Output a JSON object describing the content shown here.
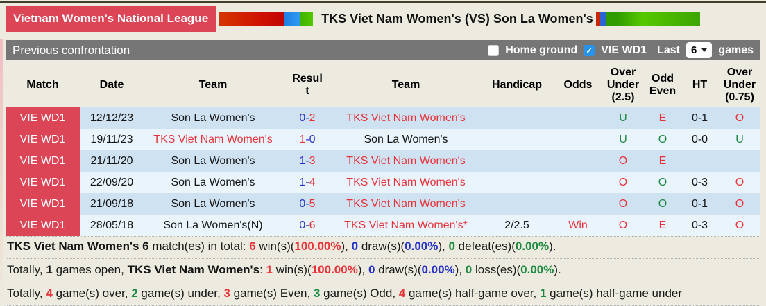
{
  "header": {
    "league_badge": "Vietnam Women's National League",
    "title_pre": "TKS Viet Nam Women's (",
    "title_vs": "VS",
    "title_post": ") Son La Women's"
  },
  "toolbar": {
    "section_title": "Previous confrontation",
    "home_ground_label": "Home ground",
    "home_ground_checked": false,
    "league_filter_label": "VIE WD1",
    "league_filter_checked": true,
    "last_label": "Last",
    "games_count": "6",
    "games_label": "games"
  },
  "table": {
    "headers": [
      "Match",
      "Date",
      "Team",
      "Result",
      "Team",
      "Handicap",
      "Odds",
      "Over Under (2.5)",
      "Odd Even",
      "HT",
      "Over Under (0.75)"
    ],
    "rows": [
      {
        "match": "VIE WD1",
        "date": "12/12/23",
        "team1": {
          "text": "Son La Women's",
          "color": "black"
        },
        "result": {
          "home": "0",
          "home_color": "blue",
          "away": "2",
          "away_color": "red"
        },
        "team2": {
          "text": "TKS Viet Nam Women's",
          "color": "red"
        },
        "handicap": "",
        "odds": {
          "text": "",
          "color": "red"
        },
        "ou25": {
          "text": "U",
          "color": "green"
        },
        "oddeven": {
          "text": "E",
          "color": "red"
        },
        "ht": "0-1",
        "ou075": {
          "text": "O",
          "color": "red"
        }
      },
      {
        "match": "VIE WD1",
        "date": "19/11/23",
        "team1": {
          "text": "TKS Viet Nam Women's",
          "color": "red"
        },
        "result": {
          "home": "1",
          "home_color": "red",
          "away": "0",
          "away_color": "blue"
        },
        "team2": {
          "text": "Son La Women's",
          "color": "black"
        },
        "handicap": "",
        "odds": {
          "text": "",
          "color": "red"
        },
        "ou25": {
          "text": "U",
          "color": "green"
        },
        "oddeven": {
          "text": "O",
          "color": "green"
        },
        "ht": "0-0",
        "ou075": {
          "text": "U",
          "color": "green"
        }
      },
      {
        "match": "VIE WD1",
        "date": "21/11/20",
        "team1": {
          "text": "Son La Women's",
          "color": "black"
        },
        "result": {
          "home": "1",
          "home_color": "blue",
          "away": "3",
          "away_color": "red"
        },
        "team2": {
          "text": "TKS Viet Nam Women's",
          "color": "red"
        },
        "handicap": "",
        "odds": {
          "text": "",
          "color": "red"
        },
        "ou25": {
          "text": "O",
          "color": "red"
        },
        "oddeven": {
          "text": "E",
          "color": "red"
        },
        "ht": "",
        "ou075": {
          "text": "",
          "color": "red"
        }
      },
      {
        "match": "VIE WD1",
        "date": "22/09/20",
        "team1": {
          "text": "Son La Women's",
          "color": "black"
        },
        "result": {
          "home": "1",
          "home_color": "blue",
          "away": "4",
          "away_color": "red"
        },
        "team2": {
          "text": "TKS Viet Nam Women's",
          "color": "red"
        },
        "handicap": "",
        "odds": {
          "text": "",
          "color": "red"
        },
        "ou25": {
          "text": "O",
          "color": "red"
        },
        "oddeven": {
          "text": "O",
          "color": "green"
        },
        "ht": "0-3",
        "ou075": {
          "text": "O",
          "color": "red"
        }
      },
      {
        "match": "VIE WD1",
        "date": "21/09/18",
        "team1": {
          "text": "Son La Women's",
          "color": "black"
        },
        "result": {
          "home": "0",
          "home_color": "blue",
          "away": "5",
          "away_color": "red"
        },
        "team2": {
          "text": "TKS Viet Nam Women's",
          "color": "red"
        },
        "handicap": "",
        "odds": {
          "text": "",
          "color": "red"
        },
        "ou25": {
          "text": "O",
          "color": "red"
        },
        "oddeven": {
          "text": "O",
          "color": "green"
        },
        "ht": "0-1",
        "ou075": {
          "text": "O",
          "color": "red"
        }
      },
      {
        "match": "VIE WD1",
        "date": "28/05/18",
        "team1": {
          "text": "Son La Women's(N)",
          "color": "black"
        },
        "result": {
          "home": "0",
          "home_color": "blue",
          "away": "6",
          "away_color": "red"
        },
        "team2": {
          "text": "TKS Viet Nam Women's*",
          "color": "red"
        },
        "handicap": "2/2.5",
        "odds": {
          "text": "Win",
          "color": "red"
        },
        "ou25": {
          "text": "O",
          "color": "red"
        },
        "oddeven": {
          "text": "E",
          "color": "red"
        },
        "ht": "0-3",
        "ou075": {
          "text": "O",
          "color": "red"
        }
      }
    ]
  },
  "summary": {
    "lines": [
      {
        "segments": [
          {
            "text": "TKS Viet Nam Women's 6",
            "bold": true,
            "color": "black"
          },
          {
            "text": " match(es) in total: "
          },
          {
            "text": "6",
            "bold": true,
            "color": "red"
          },
          {
            "text": " win(s)("
          },
          {
            "text": "100.00%",
            "bold": true,
            "color": "red"
          },
          {
            "text": "), "
          },
          {
            "text": "0",
            "bold": true,
            "color": "blue"
          },
          {
            "text": " draw(s)("
          },
          {
            "text": "0.00%",
            "bold": true,
            "color": "blue"
          },
          {
            "text": "), "
          },
          {
            "text": "0",
            "bold": true,
            "color": "green"
          },
          {
            "text": " defeat(es)("
          },
          {
            "text": "0.00%",
            "bold": true,
            "color": "green"
          },
          {
            "text": ")."
          }
        ]
      },
      {
        "segments": [
          {
            "text": "Totally, "
          },
          {
            "text": "1",
            "bold": true,
            "color": "black"
          },
          {
            "text": " games open, "
          },
          {
            "text": "TKS Viet Nam Women's",
            "bold": true,
            "color": "black"
          },
          {
            "text": ": "
          },
          {
            "text": "1",
            "bold": true,
            "color": "red"
          },
          {
            "text": " win(s)("
          },
          {
            "text": "100.00%",
            "bold": true,
            "color": "red"
          },
          {
            "text": "), "
          },
          {
            "text": "0",
            "bold": true,
            "color": "blue"
          },
          {
            "text": " draw(s)("
          },
          {
            "text": "0.00%",
            "bold": true,
            "color": "blue"
          },
          {
            "text": "), "
          },
          {
            "text": "0",
            "bold": true,
            "color": "green"
          },
          {
            "text": " loss(es)("
          },
          {
            "text": "0.00%",
            "bold": true,
            "color": "green"
          },
          {
            "text": ")."
          }
        ]
      },
      {
        "segments": [
          {
            "text": "Totally, "
          },
          {
            "text": "4",
            "bold": true,
            "color": "red"
          },
          {
            "text": " game(s) over, "
          },
          {
            "text": "2",
            "bold": true,
            "color": "green"
          },
          {
            "text": " game(s) under, "
          },
          {
            "text": "3",
            "bold": true,
            "color": "red"
          },
          {
            "text": " game(s) Even, "
          },
          {
            "text": "3",
            "bold": true,
            "color": "green"
          },
          {
            "text": " game(s) Odd, "
          },
          {
            "text": "4",
            "bold": true,
            "color": "red"
          },
          {
            "text": " game(s) half-game over, "
          },
          {
            "text": "1",
            "bold": true,
            "color": "green"
          },
          {
            "text": " game(s) half-game under"
          }
        ]
      }
    ]
  },
  "colors": {
    "accent_crimson": "#dc4556",
    "win_red": "#e8333a",
    "draw_blue": "#2531c9",
    "defeat_green": "#1e8a41",
    "row_blue_dark": "#cfe2f2",
    "row_blue_light": "#e9f4fc",
    "toolbar_gray": "#767676",
    "checkbox_blue": "#2893ec",
    "page_background": "#edebdf"
  }
}
